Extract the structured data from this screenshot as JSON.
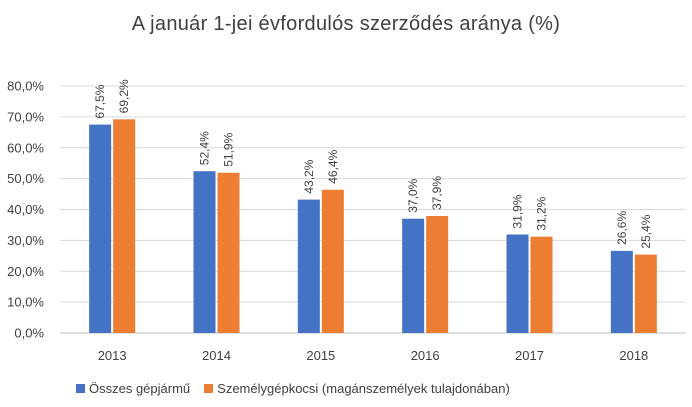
{
  "chart_data": {
    "type": "bar",
    "title": "A január 1-jei évfordulós szerződés aránya (%)",
    "categories": [
      "2013",
      "2014",
      "2015",
      "2016",
      "2017",
      "2018"
    ],
    "series": [
      {
        "name": "Összes gépjármű",
        "color": "#4472C4",
        "values": [
          67.5,
          52.4,
          43.2,
          37.0,
          31.9,
          26.6
        ],
        "labels": [
          "67,5%",
          "52,4%",
          "43,2%",
          "37,0%",
          "31,9%",
          "26,6%"
        ]
      },
      {
        "name": "Személygépkocsi (magánszemélyek tulajdonában)",
        "color": "#ED7D31",
        "values": [
          69.2,
          51.9,
          46.4,
          37.9,
          31.2,
          25.4
        ],
        "labels": [
          "69,2%",
          "51,9%",
          "46,4%",
          "37,9%",
          "31,2%",
          "25,4%"
        ]
      }
    ],
    "yticks": [
      "0,0%",
      "10,0%",
      "20,0%",
      "30,0%",
      "40,0%",
      "50,0%",
      "60,0%",
      "70,0%",
      "80,0%"
    ],
    "ylim": [
      0,
      80
    ],
    "grid": true,
    "legend_position": "bottom-left",
    "data_labels_rotated": true
  }
}
